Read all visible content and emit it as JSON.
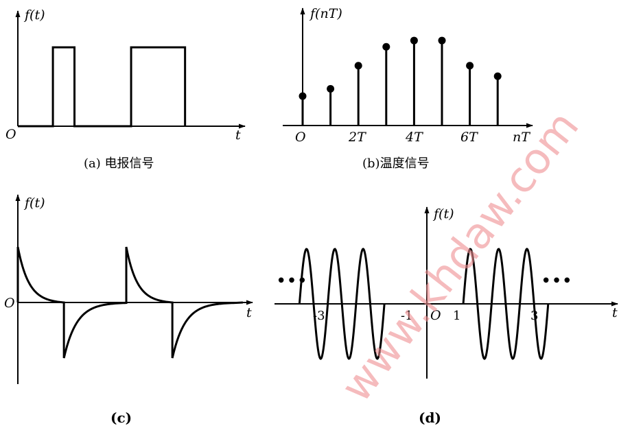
{
  "chart_data": [
    {
      "type": "line",
      "panel": "a",
      "caption": "(a) 电报信号",
      "ylabel": "f(t)",
      "xlabel": "t",
      "origin_label": "O",
      "pulses": [
        {
          "start": 1.3,
          "end": 2.1,
          "amplitude": 1
        },
        {
          "start": 4.2,
          "end": 6.2,
          "amplitude": 1
        }
      ],
      "xlim": [
        0,
        8.3
      ],
      "ylim": [
        0,
        1.6
      ]
    },
    {
      "type": "stem",
      "panel": "b",
      "caption": "(b)温度信号",
      "ylabel": "f(nT)",
      "xlabel": "nT",
      "x_ticks": [
        "O",
        "2T",
        "4T",
        "6T"
      ],
      "x": [
        0,
        1,
        2,
        3,
        4,
        5,
        6,
        7
      ],
      "values": [
        0.28,
        0.35,
        0.57,
        0.75,
        0.81,
        0.81,
        0.57,
        0.47
      ],
      "xlim": [
        0,
        8.3
      ],
      "ylim": [
        0,
        1.15
      ]
    },
    {
      "type": "line",
      "panel": "c",
      "caption": "(c)",
      "ylabel": "f(t)",
      "xlabel": "t",
      "origin_label": "O",
      "description_values": {
        "period": 4,
        "peak": 1,
        "trough": -1
      },
      "xlim": [
        0,
        8.5
      ],
      "ylim": [
        -1.4,
        1.8
      ]
    },
    {
      "type": "line",
      "panel": "d",
      "caption": "(d)",
      "ylabel": "f(t)",
      "xlabel": "t",
      "origin_label": "O",
      "x_ticks": [
        "-3",
        "-1",
        "1",
        "3"
      ],
      "ellipsis": "•••",
      "bursts": [
        {
          "start": -4.2,
          "end": -1.4,
          "cycles": 3
        },
        {
          "start": 1.2,
          "end": 4.0,
          "cycles": 3
        }
      ],
      "xlim": [
        -6.5,
        8.5
      ],
      "ylim": [
        -1.4,
        1.8
      ]
    }
  ],
  "watermark": "www.khdaw.com"
}
